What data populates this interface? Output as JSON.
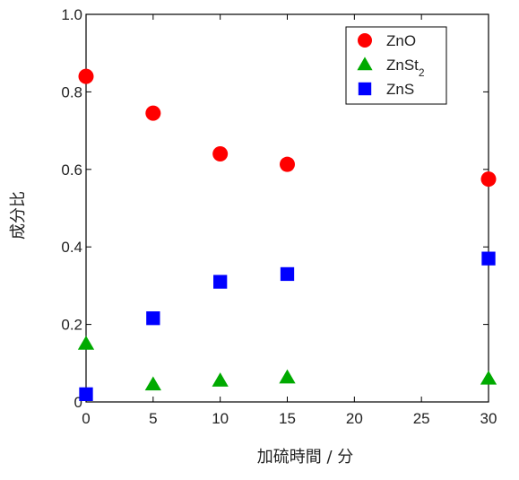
{
  "chart_data": {
    "type": "scatter",
    "title": "",
    "xlabel": "加硫時間 / 分",
    "ylabel": "成分比",
    "xlim": [
      0,
      30
    ],
    "ylim": [
      0,
      1.0
    ],
    "xticks": [
      0,
      5,
      10,
      15,
      20,
      25,
      30
    ],
    "yticks": [
      0,
      0.2,
      0.4,
      0.6,
      0.8,
      1.0
    ],
    "xtick_labels": [
      "0",
      "5",
      "10",
      "15",
      "20",
      "25",
      "30"
    ],
    "ytick_labels": [
      "0",
      "0.2",
      "0.4",
      "0.6",
      "0.8",
      "1.0"
    ],
    "grid": false,
    "legend_position": "top-right",
    "series": [
      {
        "name": "ZnO",
        "name_main": "ZnO",
        "name_sub": "",
        "marker": "circle",
        "color": "#ff0000",
        "x": [
          0,
          5,
          10,
          15,
          30
        ],
        "y": [
          0.84,
          0.745,
          0.64,
          0.613,
          0.575
        ]
      },
      {
        "name": "ZnSt2",
        "name_main": "ZnSt",
        "name_sub": "2",
        "marker": "triangle",
        "color": "#00aa00",
        "x": [
          0,
          5,
          10,
          15,
          30
        ],
        "y": [
          0.15,
          0.045,
          0.055,
          0.063,
          0.06
        ]
      },
      {
        "name": "ZnS",
        "name_main": "ZnS",
        "name_sub": "",
        "marker": "square",
        "color": "#0000ff",
        "x": [
          0,
          5,
          10,
          15,
          30
        ],
        "y": [
          0.02,
          0.216,
          0.31,
          0.33,
          0.37
        ]
      }
    ]
  }
}
